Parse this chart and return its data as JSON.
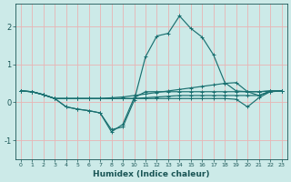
{
  "xlabel": "Humidex (Indice chaleur)",
  "xlim": [
    -0.5,
    23.5
  ],
  "ylim": [
    -1.5,
    2.6
  ],
  "yticks": [
    -1,
    0,
    1,
    2
  ],
  "xticks": [
    0,
    1,
    2,
    3,
    4,
    5,
    6,
    7,
    8,
    9,
    10,
    11,
    12,
    13,
    14,
    15,
    16,
    17,
    18,
    19,
    20,
    21,
    22,
    23
  ],
  "background_color": "#cceae8",
  "grid_color": "#e8b4b4",
  "line_color": "#1a7070",
  "lines": [
    [
      0.3,
      0.28,
      0.2,
      0.1,
      -0.12,
      -0.18,
      -0.22,
      -0.28,
      -0.72,
      -0.65,
      0.05,
      1.2,
      1.75,
      1.82,
      2.28,
      1.95,
      1.72,
      1.25,
      0.52,
      0.3,
      0.28,
      0.28,
      0.3,
      0.3
    ],
    [
      0.3,
      0.28,
      0.2,
      0.1,
      -0.12,
      -0.18,
      -0.22,
      -0.28,
      -0.78,
      -0.58,
      0.12,
      0.28,
      0.28,
      0.28,
      0.28,
      0.28,
      0.28,
      0.28,
      0.28,
      0.28,
      0.28,
      0.28,
      0.3,
      0.3
    ],
    [
      0.3,
      0.28,
      0.2,
      0.1,
      0.1,
      0.1,
      0.1,
      0.1,
      0.12,
      0.14,
      0.18,
      0.22,
      0.26,
      0.3,
      0.34,
      0.38,
      0.42,
      0.46,
      0.5,
      0.52,
      0.28,
      0.18,
      0.28,
      0.3
    ],
    [
      0.3,
      0.28,
      0.2,
      0.1,
      0.1,
      0.1,
      0.1,
      0.1,
      0.1,
      0.1,
      0.1,
      0.12,
      0.14,
      0.16,
      0.18,
      0.18,
      0.18,
      0.18,
      0.18,
      0.18,
      0.18,
      0.18,
      0.3,
      0.3
    ],
    [
      0.3,
      0.28,
      0.2,
      0.1,
      0.1,
      0.1,
      0.1,
      0.1,
      0.1,
      0.1,
      0.1,
      0.1,
      0.1,
      0.1,
      0.1,
      0.1,
      0.1,
      0.1,
      0.1,
      0.08,
      -0.12,
      0.12,
      0.28,
      0.3
    ]
  ]
}
